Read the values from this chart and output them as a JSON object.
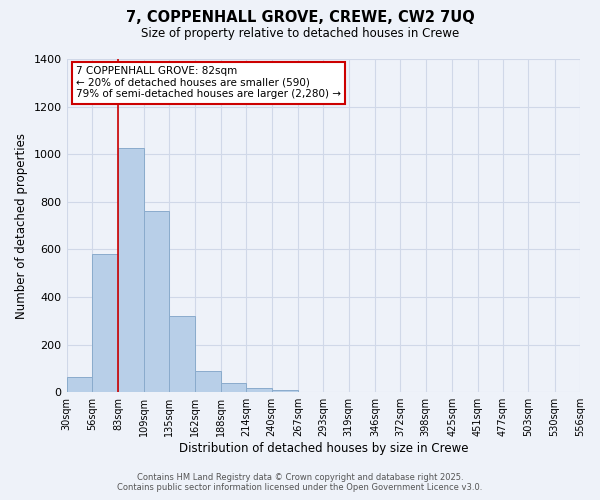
{
  "title": "7, COPPENHALL GROVE, CREWE, CW2 7UQ",
  "subtitle": "Size of property relative to detached houses in Crewe",
  "xlabel": "Distribution of detached houses by size in Crewe",
  "ylabel": "Number of detached properties",
  "bar_color": "#b8cfe8",
  "background_color": "#eef2f9",
  "grid_color": "#d0d8e8",
  "bin_edges": [
    30,
    56,
    83,
    109,
    135,
    162,
    188,
    214,
    240,
    267,
    293,
    319,
    346,
    372,
    398,
    425,
    451,
    477,
    503,
    530,
    556
  ],
  "bar_heights": [
    65,
    580,
    1025,
    760,
    320,
    88,
    40,
    18,
    8,
    0,
    0,
    0,
    0,
    0,
    0,
    0,
    0,
    0,
    0,
    0
  ],
  "tick_labels": [
    "30sqm",
    "56sqm",
    "83sqm",
    "109sqm",
    "135sqm",
    "162sqm",
    "188sqm",
    "214sqm",
    "240sqm",
    "267sqm",
    "293sqm",
    "319sqm",
    "346sqm",
    "372sqm",
    "398sqm",
    "425sqm",
    "451sqm",
    "477sqm",
    "503sqm",
    "530sqm",
    "556sqm"
  ],
  "property_line_x": 83,
  "property_line_color": "#cc0000",
  "annotation_title": "7 COPPENHALL GROVE: 82sqm",
  "annotation_line1": "← 20% of detached houses are smaller (590)",
  "annotation_line2": "79% of semi-detached houses are larger (2,280) →",
  "annotation_box_color": "#ffffff",
  "annotation_box_edge": "#cc0000",
  "ylim": [
    0,
    1400
  ],
  "yticks": [
    0,
    200,
    400,
    600,
    800,
    1000,
    1200,
    1400
  ],
  "footer_line1": "Contains HM Land Registry data © Crown copyright and database right 2025.",
  "footer_line2": "Contains public sector information licensed under the Open Government Licence v3.0."
}
